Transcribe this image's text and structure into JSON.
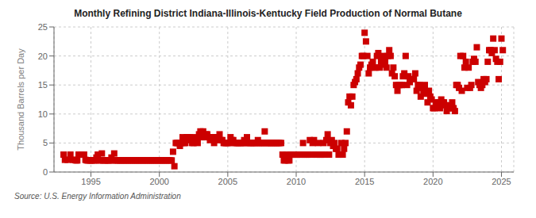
{
  "chart_data": {
    "type": "scatter",
    "title": "Monthly Refining District Indiana-Illinois-Kentucky Field Production of Normal Butane",
    "ylabel": "Thousand Barrels per Day",
    "annotations": [
      "Source: U.S. Energy Information Administration"
    ],
    "color": "#cc0000",
    "marker": "square",
    "grid": true,
    "xlim": [
      1992.3,
      2025.9
    ],
    "ylim": [
      0,
      25
    ],
    "xticks": [
      1995,
      2000,
      2005,
      2010,
      2015,
      2020,
      2025
    ],
    "yticks": [
      0,
      5,
      10,
      15,
      20,
      25
    ],
    "x": [
      1993.0,
      1993.1,
      1993.3,
      1993.5,
      1993.7,
      1993.8,
      1993.9,
      1994.0,
      1994.1,
      1994.3,
      1994.5,
      1994.6,
      1994.7,
      1994.8,
      1994.9,
      1995.0,
      1995.1,
      1995.2,
      1995.3,
      1995.4,
      1995.5,
      1995.6,
      1995.7,
      1995.8,
      1995.9,
      1996.0,
      1996.1,
      1996.2,
      1996.3,
      1996.4,
      1996.5,
      1996.6,
      1996.7,
      1996.8,
      1996.9,
      1997.0,
      1997.1,
      1997.2,
      1997.3,
      1997.4,
      1997.5,
      1997.6,
      1997.7,
      1997.8,
      1997.9,
      1998.0,
      1998.1,
      1998.2,
      1998.3,
      1998.4,
      1998.5,
      1998.6,
      1998.7,
      1998.8,
      1998.9,
      1999.0,
      1999.1,
      1999.2,
      1999.3,
      1999.4,
      1999.5,
      1999.6,
      1999.7,
      1999.8,
      1999.9,
      2000.0,
      2000.1,
      2000.2,
      2000.3,
      2000.4,
      2000.5,
      2000.6,
      2000.7,
      2000.8,
      2000.9,
      2001.0,
      2001.1,
      2001.2,
      2001.3,
      2001.4,
      2001.5,
      2001.6,
      2001.7,
      2001.8,
      2001.9,
      2002.0,
      2002.1,
      2002.2,
      2002.3,
      2002.4,
      2002.5,
      2002.6,
      2002.7,
      2002.8,
      2002.9,
      2003.0,
      2003.1,
      2003.2,
      2003.3,
      2003.4,
      2003.5,
      2003.6,
      2003.7,
      2003.8,
      2003.9,
      2004.0,
      2004.1,
      2004.2,
      2004.3,
      2004.4,
      2004.5,
      2004.6,
      2004.7,
      2004.8,
      2004.9,
      2005.0,
      2005.1,
      2005.2,
      2005.3,
      2005.4,
      2005.5,
      2005.6,
      2005.7,
      2005.8,
      2005.9,
      2006.0,
      2006.1,
      2006.2,
      2006.3,
      2006.4,
      2006.5,
      2006.6,
      2006.7,
      2006.8,
      2006.9,
      2007.0,
      2007.1,
      2007.2,
      2007.3,
      2007.4,
      2007.5,
      2007.6,
      2007.7,
      2007.8,
      2007.9,
      2008.0,
      2008.1,
      2008.2,
      2008.3,
      2008.4,
      2008.5,
      2008.6,
      2008.7,
      2008.8,
      2008.9,
      2009.0,
      2009.1,
      2009.2,
      2009.3,
      2009.4,
      2009.5,
      2009.6,
      2009.7,
      2009.8,
      2009.9,
      2010.0,
      2010.1,
      2010.2,
      2010.3,
      2010.4,
      2010.5,
      2010.6,
      2010.7,
      2010.8,
      2010.9,
      2011.0,
      2011.1,
      2011.2,
      2011.3,
      2011.4,
      2011.5,
      2011.6,
      2011.7,
      2011.8,
      2011.9,
      2012.0,
      2012.1,
      2012.2,
      2012.3,
      2012.4,
      2012.5,
      2012.6,
      2012.7,
      2012.8,
      2012.9,
      2013.0,
      2013.1,
      2013.2,
      2013.3,
      2013.4,
      2013.5,
      2013.6,
      2013.7,
      2013.8,
      2013.9,
      2014.0,
      2014.1,
      2014.2,
      2014.3,
      2014.4,
      2014.5,
      2014.6,
      2014.7,
      2014.8,
      2014.9,
      2015.0,
      2015.1,
      2015.2,
      2015.3,
      2015.4,
      2015.5,
      2015.6,
      2015.7,
      2015.8,
      2015.9,
      2016.0,
      2016.1,
      2016.2,
      2016.3,
      2016.4,
      2016.5,
      2016.6,
      2016.7,
      2016.8,
      2016.9,
      2017.0,
      2017.1,
      2017.2,
      2017.3,
      2017.4,
      2017.5,
      2017.6,
      2017.7,
      2017.8,
      2017.9,
      2018.0,
      2018.1,
      2018.2,
      2018.3,
      2018.4,
      2018.5,
      2018.6,
      2018.7,
      2018.8,
      2018.9,
      2019.0,
      2019.1,
      2019.2,
      2019.3,
      2019.4,
      2019.5,
      2019.6,
      2019.7,
      2019.8,
      2019.9,
      2020.0,
      2020.1,
      2020.2,
      2020.3,
      2020.4,
      2020.5,
      2020.6,
      2020.7,
      2020.8,
      2020.9,
      2021.0,
      2021.1,
      2021.2,
      2021.3,
      2021.4,
      2021.5,
      2021.6,
      2021.7,
      2021.8,
      2021.9,
      2022.0,
      2022.1,
      2022.2,
      2022.3,
      2022.4,
      2022.5,
      2022.6,
      2022.7,
      2022.8,
      2022.9,
      2023.0,
      2023.1,
      2023.2,
      2023.3,
      2023.4,
      2023.5,
      2023.6,
      2023.7,
      2023.8,
      2023.9,
      2024.0,
      2024.1,
      2024.2,
      2024.3,
      2024.4,
      2024.5,
      2024.6,
      2024.7,
      2024.8,
      2024.9,
      2025.0,
      2025.1
    ],
    "values": [
      3.0,
      2.1,
      2.1,
      3.0,
      2.1,
      2.1,
      2.0,
      2.0,
      3.0,
      3.0,
      3.0,
      2.1,
      2.0,
      2.0,
      2.0,
      2.0,
      2.0,
      2.0,
      2.0,
      2.5,
      3.0,
      2.0,
      2.0,
      3.2,
      2.0,
      2.0,
      2.0,
      2.0,
      2.0,
      2.0,
      2.5,
      2.0,
      3.2,
      2.0,
      2.0,
      2.0,
      2.0,
      2.0,
      2.0,
      2.0,
      2.0,
      2.0,
      2.0,
      2.0,
      2.0,
      2.0,
      2.0,
      2.0,
      2.0,
      2.0,
      2.0,
      2.0,
      2.0,
      2.0,
      2.0,
      2.0,
      2.0,
      2.0,
      2.0,
      2.0,
      2.0,
      2.0,
      2.0,
      2.0,
      2.0,
      2.0,
      2.0,
      2.0,
      2.0,
      2.0,
      2.0,
      2.0,
      2.0,
      2.0,
      2.0,
      3.5,
      1.0,
      5.0,
      5.0,
      5.0,
      4.5,
      5.0,
      6.0,
      5.0,
      5.0,
      6.0,
      6.0,
      6.0,
      5.5,
      5.0,
      5.0,
      6.0,
      5.5,
      5.0,
      6.5,
      7.0,
      6.0,
      7.0,
      6.0,
      6.5,
      6.5,
      6.0,
      5.5,
      6.0,
      6.0,
      5.0,
      5.5,
      6.0,
      6.0,
      6.5,
      5.5,
      5.5,
      5.0,
      5.0,
      5.0,
      5.0,
      5.0,
      6.0,
      5.5,
      5.5,
      5.0,
      5.0,
      5.0,
      5.0,
      5.0,
      5.0,
      5.0,
      5.5,
      5.0,
      6.0,
      5.0,
      5.0,
      5.0,
      5.0,
      5.0,
      5.0,
      5.0,
      5.5,
      5.0,
      5.0,
      5.0,
      5.0,
      7.0,
      5.0,
      5.0,
      5.0,
      5.0,
      5.0,
      5.0,
      5.0,
      5.0,
      5.0,
      5.0,
      5.0,
      5.0,
      3.0,
      2.0,
      2.0,
      3.0,
      2.0,
      2.0,
      3.0,
      3.0,
      3.0,
      3.0,
      3.0,
      3.0,
      3.0,
      3.0,
      3.0,
      5.0,
      3.0,
      3.0,
      3.0,
      3.0,
      5.5,
      3.0,
      5.0,
      5.5,
      3.0,
      3.0,
      5.0,
      3.0,
      3.0,
      3.0,
      5.0,
      3.0,
      5.5,
      6.5,
      3.0,
      5.0,
      5.5,
      4.5,
      5.0,
      4.0,
      4.0,
      3.0,
      3.0,
      5.0,
      3.0,
      4.0,
      5.0,
      7.0,
      12.0,
      13.0,
      11.5,
      13.0,
      15.0,
      15.5,
      16.0,
      17.0,
      18.0,
      18.5,
      20.0,
      20.0,
      24.0,
      22.5,
      20.0,
      17.0,
      18.0,
      18.5,
      19.0,
      18.0,
      18.0,
      20.0,
      20.5,
      18.0,
      19.0,
      20.0,
      18.5,
      19.0,
      18.0,
      20.0,
      21.0,
      20.0,
      17.0,
      18.0,
      16.5,
      15.0,
      14.0,
      15.0,
      15.0,
      15.0,
      16.5,
      17.0,
      20.0,
      15.0,
      16.5,
      15.5,
      16.0,
      16.0,
      16.0,
      17.0,
      14.0,
      15.0,
      15.0,
      13.0,
      14.5,
      14.0,
      15.0,
      13.5,
      12.0,
      14.0,
      13.0,
      12.5,
      11.0,
      11.0,
      12.0,
      11.5,
      12.0,
      11.0,
      12.5,
      12.0,
      12.0,
      11.5,
      10.5,
      11.0,
      11.5,
      11.0,
      12.0,
      11.0,
      10.5,
      15.0,
      15.0,
      14.5,
      20.0,
      14.0,
      20.0,
      18.0,
      19.0,
      14.5,
      18.0,
      14.5,
      15.0,
      19.0,
      19.5,
      19.0,
      21.5,
      15.5,
      15.0,
      14.5,
      15.0,
      16.0,
      15.5,
      16.0,
      19.0,
      21.0,
      21.0,
      20.5,
      23.0,
      21.0,
      19.5,
      19.0,
      16.0,
      19.0,
      23.0,
      21.0
    ]
  }
}
